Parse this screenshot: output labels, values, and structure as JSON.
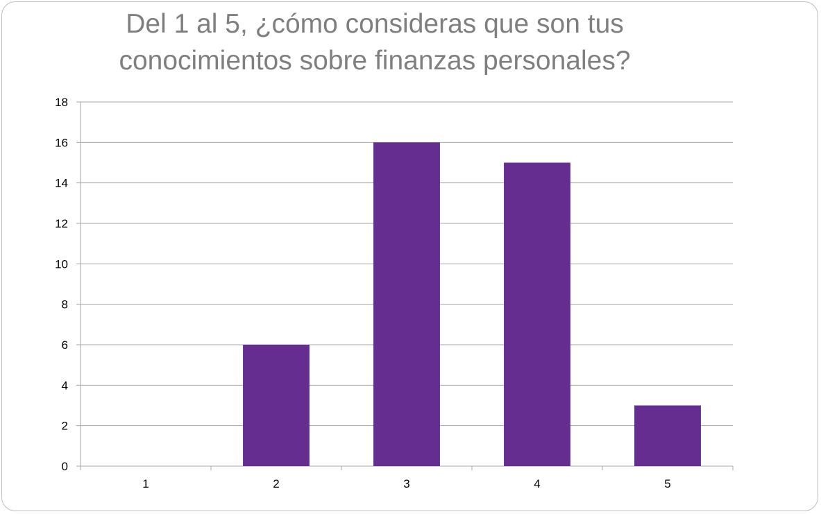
{
  "chart_data": {
    "type": "bar",
    "title_lines": [
      "Del 1 al 5, ¿cómo consideras que son tus",
      "conocimientos sobre finanzas personales?"
    ],
    "categories": [
      "1",
      "2",
      "3",
      "4",
      "5"
    ],
    "values": [
      0,
      6,
      16,
      15,
      3
    ],
    "ylim": [
      0,
      18
    ],
    "yticks": [
      0,
      2,
      4,
      6,
      8,
      10,
      12,
      14,
      16,
      18
    ],
    "grid": true,
    "legend": "none",
    "bar_color": "#662d91",
    "title_color": "#7f7f7f",
    "grid_color": "#a6a6a6"
  }
}
